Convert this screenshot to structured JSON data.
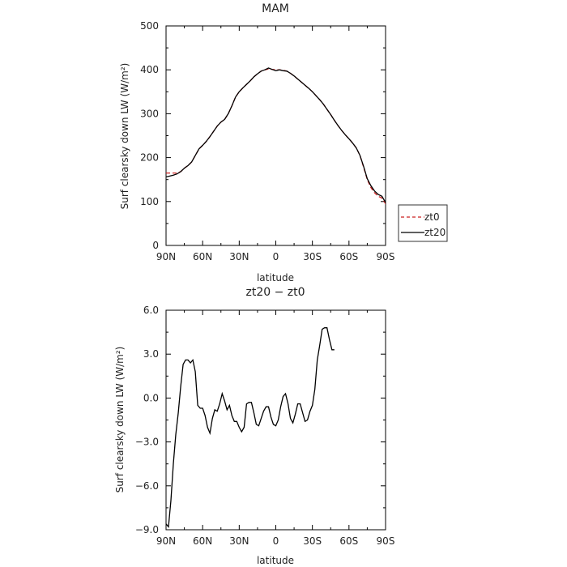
{
  "chart_data": [
    {
      "type": "line",
      "title": "MAM",
      "xlabel": "latitude",
      "ylabel": "Surf clearsky down LW (W/m²)",
      "ylim": [
        0,
        500
      ],
      "xlim": [
        90,
        -90
      ],
      "x_ticks": [
        90,
        60,
        30,
        0,
        -30,
        -60,
        -90
      ],
      "x_tick_labels": [
        "90N",
        "60N",
        "30N",
        "0",
        "30S",
        "60S",
        "90S"
      ],
      "y_ticks": [
        0,
        100,
        200,
        300,
        400,
        500
      ],
      "y_tick_labels": [
        "0",
        "100",
        "200",
        "300",
        "400",
        "500"
      ],
      "legend": "right",
      "series": [
        {
          "name": "zt0",
          "color": "#cc2222",
          "dash": "dashed",
          "points": [
            [
              90,
              165
            ],
            [
              87,
              165
            ],
            [
              84,
              165
            ],
            [
              81,
              165
            ],
            [
              78,
              168
            ],
            [
              75,
              176
            ],
            [
              72,
              182
            ],
            [
              69,
              190
            ],
            [
              66,
              205
            ],
            [
              63,
              220
            ],
            [
              60,
              228
            ],
            [
              57,
              237
            ],
            [
              54,
              248
            ],
            [
              51,
              260
            ],
            [
              48,
              272
            ],
            [
              45,
              281
            ],
            [
              42,
              287
            ],
            [
              39,
              300
            ],
            [
              36,
              318
            ],
            [
              33,
              338
            ],
            [
              30,
              350
            ],
            [
              27,
              359
            ],
            [
              24,
              367
            ],
            [
              21,
              375
            ],
            [
              18,
              384
            ],
            [
              15,
              391
            ],
            [
              12,
              397
            ],
            [
              9,
              400
            ],
            [
              6,
              402
            ],
            [
              3,
              401
            ],
            [
              0,
              400
            ],
            [
              -3,
              400
            ],
            [
              -6,
              399
            ],
            [
              -9,
              397
            ],
            [
              -12,
              392
            ],
            [
              -15,
              386
            ],
            [
              -18,
              379
            ],
            [
              -21,
              372
            ],
            [
              -24,
              365
            ],
            [
              -27,
              358
            ],
            [
              -30,
              350
            ],
            [
              -33,
              341
            ],
            [
              -36,
              332
            ],
            [
              -39,
              322
            ],
            [
              -42,
              310
            ],
            [
              -45,
              298
            ],
            [
              -48,
              285
            ],
            [
              -51,
              273
            ],
            [
              -54,
              262
            ],
            [
              -57,
              252
            ],
            [
              -60,
              243
            ],
            [
              -63,
              233
            ],
            [
              -66,
              222
            ],
            [
              -69,
              205
            ],
            [
              -72,
              178
            ],
            [
              -75,
              150
            ],
            [
              -78,
              132
            ],
            [
              -81,
              120
            ],
            [
              -84,
              112
            ],
            [
              -87,
              108
            ],
            [
              -90,
              95
            ],
            [
              -93,
              82
            ]
          ]
        },
        {
          "name": "zt20",
          "color": "#000000",
          "dash": "solid",
          "points": [
            [
              90,
              156
            ],
            [
              87,
              158
            ],
            [
              84,
              160
            ],
            [
              81,
              163
            ],
            [
              78,
              168
            ],
            [
              75,
              176
            ],
            [
              72,
              182
            ],
            [
              69,
              190
            ],
            [
              66,
              205
            ],
            [
              63,
              220
            ],
            [
              60,
              228
            ],
            [
              57,
              237
            ],
            [
              54,
              248
            ],
            [
              51,
              260
            ],
            [
              48,
              272
            ],
            [
              45,
              281
            ],
            [
              42,
              287
            ],
            [
              39,
              300
            ],
            [
              36,
              318
            ],
            [
              33,
              338
            ],
            [
              30,
              350
            ],
            [
              27,
              359
            ],
            [
              24,
              367
            ],
            [
              21,
              375
            ],
            [
              18,
              384
            ],
            [
              15,
              391
            ],
            [
              12,
              397
            ],
            [
              9,
              400
            ],
            [
              6,
              404
            ],
            [
              3,
              401
            ],
            [
              0,
              398
            ],
            [
              -3,
              400
            ],
            [
              -6,
              398
            ],
            [
              -9,
              397
            ],
            [
              -12,
              392
            ],
            [
              -15,
              386
            ],
            [
              -18,
              379
            ],
            [
              -21,
              372
            ],
            [
              -24,
              365
            ],
            [
              -27,
              358
            ],
            [
              -30,
              350
            ],
            [
              -33,
              341
            ],
            [
              -36,
              332
            ],
            [
              -39,
              322
            ],
            [
              -42,
              310
            ],
            [
              -45,
              298
            ],
            [
              -48,
              285
            ],
            [
              -51,
              273
            ],
            [
              -54,
              262
            ],
            [
              -57,
              252
            ],
            [
              -60,
              243
            ],
            [
              -63,
              233
            ],
            [
              -66,
              222
            ],
            [
              -69,
              205
            ],
            [
              -72,
              180
            ],
            [
              -75,
              152
            ],
            [
              -78,
              136
            ],
            [
              -81,
              124
            ],
            [
              -84,
              116
            ],
            [
              -87,
              112
            ],
            [
              -90,
              98
            ],
            [
              -93,
              85
            ]
          ]
        }
      ]
    },
    {
      "type": "line",
      "title": "zt20 − zt0",
      "xlabel": "latitude",
      "ylabel": "Surf clearsky down LW (W/m²)",
      "ylim": [
        -9,
        6
      ],
      "xlim": [
        90,
        -90
      ],
      "x_ticks": [
        90,
        60,
        30,
        0,
        -30,
        -60,
        -90
      ],
      "x_tick_labels": [
        "90N",
        "60N",
        "30N",
        "0",
        "30S",
        "60S",
        "90S"
      ],
      "y_ticks": [
        -9,
        -6,
        -3,
        0,
        3,
        6
      ],
      "y_tick_labels": [
        "−9.0",
        "−6.0",
        "−3.0",
        "0.0",
        "3.0",
        "6.0"
      ],
      "series": [
        {
          "color": "#000000",
          "dash": "solid",
          "points": [
            [
              90,
              -8.6
            ],
            [
              88,
              -8.8
            ],
            [
              86,
              -7.0
            ],
            [
              84,
              -4.5
            ],
            [
              82,
              -2.5
            ],
            [
              80,
              -1.0
            ],
            [
              78,
              0.8
            ],
            [
              76,
              2.3
            ],
            [
              74,
              2.6
            ],
            [
              72,
              2.6
            ],
            [
              70,
              2.4
            ],
            [
              68,
              2.6
            ],
            [
              66,
              1.8
            ],
            [
              64,
              -0.5
            ],
            [
              62,
              -0.7
            ],
            [
              60,
              -0.7
            ],
            [
              58,
              -1.2
            ],
            [
              56,
              -2.0
            ],
            [
              54,
              -2.4
            ],
            [
              52,
              -1.4
            ],
            [
              50,
              -0.8
            ],
            [
              48,
              -0.9
            ],
            [
              46,
              -0.4
            ],
            [
              44,
              0.3
            ],
            [
              42,
              -0.2
            ],
            [
              40,
              -0.8
            ],
            [
              38,
              -0.5
            ],
            [
              36,
              -1.2
            ],
            [
              34,
              -1.6
            ],
            [
              32,
              -1.6
            ],
            [
              30,
              -2.0
            ],
            [
              28,
              -2.3
            ],
            [
              26,
              -2.0
            ],
            [
              24,
              -0.4
            ],
            [
              22,
              -0.3
            ],
            [
              20,
              -0.3
            ],
            [
              18,
              -1.0
            ],
            [
              16,
              -1.8
            ],
            [
              14,
              -1.9
            ],
            [
              12,
              -1.4
            ],
            [
              10,
              -0.9
            ],
            [
              8,
              -0.6
            ],
            [
              6,
              -0.6
            ],
            [
              4,
              -1.3
            ],
            [
              2,
              -1.8
            ],
            [
              0,
              -1.9
            ],
            [
              -2,
              -1.5
            ],
            [
              -4,
              -0.6
            ],
            [
              -6,
              0.1
            ],
            [
              -8,
              0.3
            ],
            [
              -10,
              -0.4
            ],
            [
              -12,
              -1.4
            ],
            [
              -14,
              -1.7
            ],
            [
              -16,
              -1.1
            ],
            [
              -18,
              -0.4
            ],
            [
              -20,
              -0.4
            ],
            [
              -22,
              -1.0
            ],
            [
              -24,
              -1.6
            ],
            [
              -26,
              -1.5
            ],
            [
              -28,
              -0.9
            ],
            [
              -30,
              -0.5
            ],
            [
              -32,
              0.6
            ],
            [
              -34,
              2.6
            ],
            [
              -36,
              3.6
            ],
            [
              -38,
              4.7
            ],
            [
              -40,
              4.8
            ],
            [
              -42,
              4.8
            ],
            [
              -44,
              4.0
            ],
            [
              -46,
              3.3
            ],
            [
              -48,
              3.3
            ]
          ]
        }
      ]
    }
  ],
  "icons": {
    "legend_marker_zt0": "dashed-line",
    "legend_marker_zt20": "solid-line"
  }
}
